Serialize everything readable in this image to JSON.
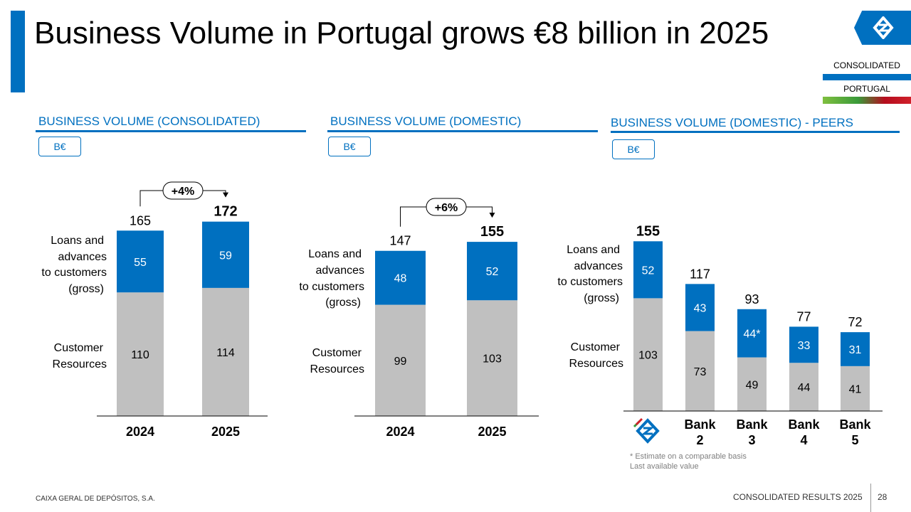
{
  "title": "Business Volume in Portugal grows €8 billion in 2025",
  "tags": {
    "consolidated": "CONSOLIDATED",
    "portugal": "PORTUGAL"
  },
  "colors": {
    "accent": "#0070c0",
    "grey": "#c0c0c0"
  },
  "sections": [
    {
      "title": "BUSINESS VOLUME (CONSOLIDATED)",
      "unit": "B€"
    },
    {
      "title": "BUSINESS VOLUME (DOMESTIC)",
      "unit": "B€"
    },
    {
      "title": "BUSINESS VOLUME (DOMESTIC) - PEERS",
      "unit": "B€"
    }
  ],
  "chart_data": [
    {
      "type": "bar",
      "stacked": true,
      "title": "BUSINESS VOLUME (CONSOLIDATED)",
      "categories": [
        "2024",
        "2025"
      ],
      "series": [
        {
          "name": "Customer Resources",
          "values": [
            110,
            114
          ],
          "labels": [
            "110",
            "114"
          ]
        },
        {
          "name": "Loans and advances to customers (gross)",
          "values": [
            55,
            59
          ],
          "labels": [
            "55",
            "59"
          ]
        }
      ],
      "totals": [
        "165",
        "172"
      ],
      "growth": "+4%",
      "ylim": [
        0,
        190
      ]
    },
    {
      "type": "bar",
      "stacked": true,
      "title": "BUSINESS VOLUME (DOMESTIC)",
      "categories": [
        "2024",
        "2025"
      ],
      "series": [
        {
          "name": "Customer Resources",
          "values": [
            99,
            103
          ],
          "labels": [
            "99",
            "103"
          ]
        },
        {
          "name": "Loans and advances to customers (gross)",
          "values": [
            48,
            52
          ],
          "labels": [
            "48",
            "52"
          ]
        }
      ],
      "totals": [
        "147",
        "155"
      ],
      "growth": "+6%",
      "ylim": [
        0,
        170
      ]
    },
    {
      "type": "bar",
      "stacked": true,
      "title": "BUSINESS VOLUME (DOMESTIC) - PEERS",
      "categories": [
        "CGD",
        "Bank\n2",
        "Bank\n3",
        "Bank\n4",
        "Bank\n5"
      ],
      "series": [
        {
          "name": "Customer Resources",
          "values": [
            103,
            73,
            49,
            44,
            41
          ],
          "labels": [
            "103",
            "73",
            "49",
            "44",
            "41"
          ]
        },
        {
          "name": "Loans and advances to customers (gross)",
          "values": [
            52,
            43,
            44,
            33,
            31
          ],
          "labels": [
            "52",
            "43",
            "44*",
            "33",
            "31"
          ]
        }
      ],
      "totals": [
        "155",
        "117",
        "93",
        "77",
        "72"
      ],
      "ylim": [
        0,
        180
      ]
    }
  ],
  "notes": {
    "estimate": "* Estimate on a comparable basis",
    "last": "Last available value"
  },
  "footer": {
    "company": "CAIXA GERAL DE DEPÓSITOS, S.A.",
    "report": "CONSOLIDATED RESULTS 2025",
    "page": "28"
  }
}
